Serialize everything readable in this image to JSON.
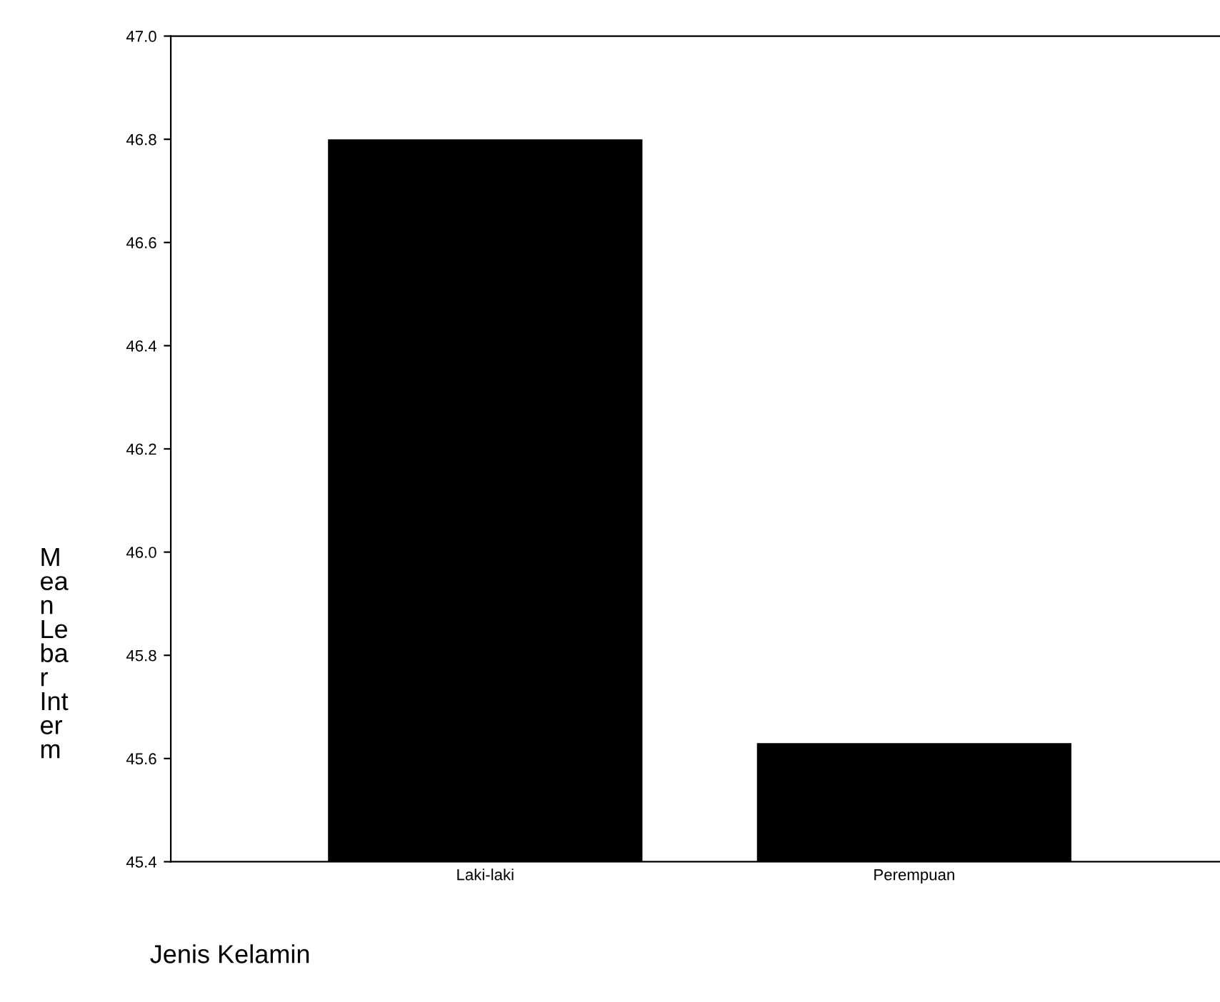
{
  "chart_data": {
    "type": "bar",
    "categories": [
      "Laki-laki",
      "Perempuan"
    ],
    "values": [
      46.8,
      45.63
    ],
    "color": "#000000",
    "ylim": [
      45.4,
      47.0
    ],
    "yticks": [
      {
        "value": 45.4,
        "label": "45.4"
      },
      {
        "value": 45.6,
        "label": "45.6"
      },
      {
        "value": 45.8,
        "label": "45.8"
      },
      {
        "value": 46.0,
        "label": "46.0"
      },
      {
        "value": 46.2,
        "label": "46.2"
      },
      {
        "value": 46.4,
        "label": "46.4"
      },
      {
        "value": 46.6,
        "label": "46.6"
      },
      {
        "value": 46.8,
        "label": "46.8"
      },
      {
        "value": 47.0,
        "label": "47.0"
      }
    ],
    "ylabel": "M\nea\nn\nLe\nba\nr\nInt\ner\nm",
    "xlabel": "Jenis Kelamin",
    "grid": false,
    "legend": false
  }
}
